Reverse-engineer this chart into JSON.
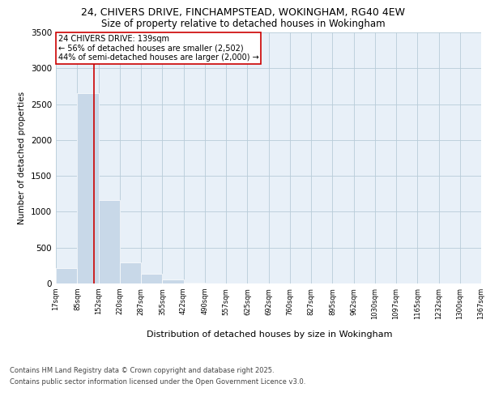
{
  "title_line1": "24, CHIVERS DRIVE, FINCHAMPSTEAD, WOKINGHAM, RG40 4EW",
  "title_line2": "Size of property relative to detached houses in Wokingham",
  "xlabel": "Distribution of detached houses by size in Wokingham",
  "ylabel": "Number of detached properties",
  "footer_line1": "Contains HM Land Registry data © Crown copyright and database right 2025.",
  "footer_line2": "Contains public sector information licensed under the Open Government Licence v3.0.",
  "annotation_title": "24 CHIVERS DRIVE: 139sqm",
  "annotation_line1": "← 56% of detached houses are smaller (2,502)",
  "annotation_line2": "44% of semi-detached houses are larger (2,000) →",
  "property_size": 139,
  "bar_color": "#c8d8e8",
  "bar_edge_color": "#aabbcc",
  "vline_color": "#cc0000",
  "annotation_box_color": "#cc0000",
  "grid_color": "#b8ccd8",
  "background_color": "#e8f0f8",
  "bins": [
    17,
    85,
    152,
    220,
    287,
    355,
    422,
    490,
    557,
    625,
    692,
    760,
    827,
    895,
    962,
    1030,
    1097,
    1165,
    1232,
    1300,
    1367
  ],
  "bin_labels": [
    "17sqm",
    "85sqm",
    "152sqm",
    "220sqm",
    "287sqm",
    "355sqm",
    "422sqm",
    "490sqm",
    "557sqm",
    "625sqm",
    "692sqm",
    "760sqm",
    "827sqm",
    "895sqm",
    "962sqm",
    "1030sqm",
    "1097sqm",
    "1165sqm",
    "1232sqm",
    "1300sqm",
    "1367sqm"
  ],
  "counts": [
    220,
    2650,
    1160,
    290,
    130,
    60,
    15,
    0,
    0,
    0,
    0,
    0,
    0,
    0,
    0,
    0,
    0,
    0,
    0,
    0
  ],
  "ylim": [
    0,
    3500
  ],
  "yticks": [
    0,
    500,
    1000,
    1500,
    2000,
    2500,
    3000,
    3500
  ]
}
